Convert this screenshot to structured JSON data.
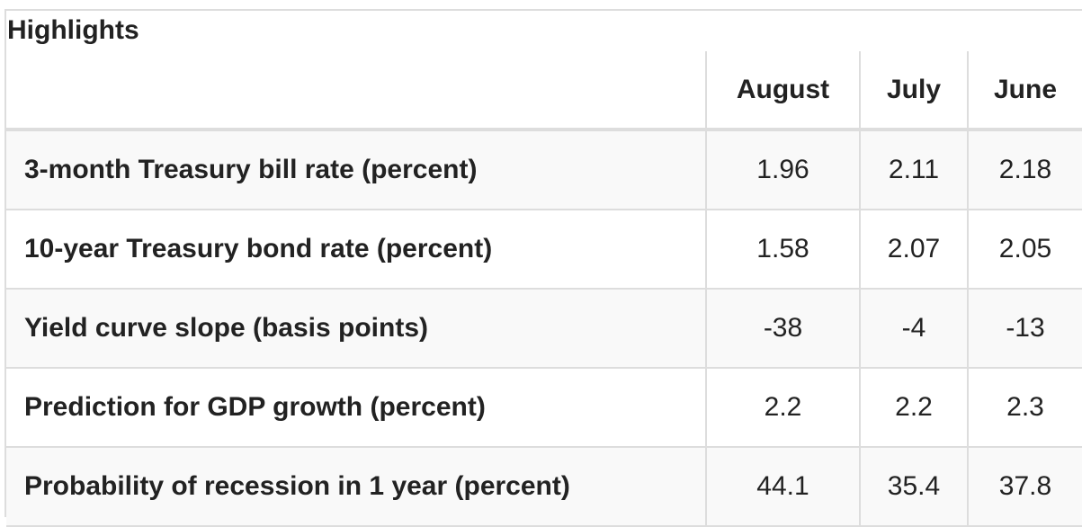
{
  "caption": "Highlights",
  "table": {
    "columns": [
      "",
      "August",
      "July",
      "June"
    ],
    "rows": [
      {
        "label": "3-month Treasury bill rate (percent)",
        "values": [
          "1.96",
          "2.11",
          "2.18"
        ]
      },
      {
        "label": "10-year Treasury bond rate (percent)",
        "values": [
          "1.58",
          "2.07",
          "2.05"
        ]
      },
      {
        "label": "Yield curve slope (basis points)",
        "values": [
          "-38",
          "-4",
          "-13"
        ]
      },
      {
        "label": "Prediction for GDP growth (percent)",
        "values": [
          "2.2",
          "2.2",
          "2.3"
        ]
      },
      {
        "label": "Probability of recession in 1 year (percent)",
        "values": [
          "44.1",
          "35.4",
          "37.8"
        ]
      }
    ]
  },
  "colors": {
    "border": "#dddddd",
    "stripe": "#f9f9f9",
    "text": "#222222"
  }
}
